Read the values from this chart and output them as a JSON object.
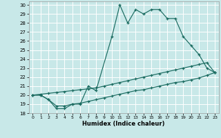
{
  "xlabel": "Humidex (Indice chaleur)",
  "background_color": "#c8e8e8",
  "grid_color": "#ffffff",
  "line_color": "#1a6b60",
  "xlim": [
    -0.5,
    23.5
  ],
  "ylim": [
    18,
    30.4
  ],
  "xtick_vals": [
    0,
    1,
    2,
    3,
    4,
    5,
    6,
    7,
    8,
    9,
    10,
    11,
    12,
    13,
    14,
    15,
    16,
    17,
    18,
    19,
    20,
    21,
    22,
    23
  ],
  "ytick_vals": [
    18,
    19,
    20,
    21,
    22,
    23,
    24,
    25,
    26,
    27,
    28,
    29,
    30
  ],
  "curve_main_x": [
    0,
    1,
    2,
    3,
    4,
    5,
    6,
    7,
    8,
    10,
    11,
    12,
    13,
    14,
    15,
    16,
    17,
    18,
    19,
    20,
    21,
    22,
    23
  ],
  "curve_main_y": [
    20,
    20,
    19.5,
    18.5,
    18.5,
    19.0,
    19.0,
    21.0,
    20.5,
    26.5,
    30.0,
    28.0,
    29.5,
    29.0,
    29.5,
    29.5,
    28.5,
    28.5,
    26.5,
    25.5,
    24.5,
    23.0,
    22.5
  ],
  "curve_upper_x": [
    0,
    1,
    2,
    3,
    4,
    5,
    6,
    7,
    8,
    9,
    10,
    11,
    12,
    13,
    14,
    15,
    16,
    17,
    18,
    19,
    20,
    21,
    22,
    23
  ],
  "curve_upper_y": [
    20.0,
    20.1,
    20.2,
    20.3,
    20.4,
    20.5,
    20.6,
    20.7,
    20.8,
    21.0,
    21.2,
    21.4,
    21.6,
    21.8,
    22.0,
    22.2,
    22.4,
    22.6,
    22.8,
    23.0,
    23.2,
    23.4,
    23.6,
    22.5
  ],
  "curve_lower_x": [
    0,
    1,
    2,
    3,
    4,
    5,
    6,
    7,
    8,
    9,
    10,
    11,
    12,
    13,
    14,
    15,
    16,
    17,
    18,
    19,
    20,
    21,
    22,
    23
  ],
  "curve_lower_y": [
    20.0,
    20.0,
    19.5,
    18.8,
    18.8,
    19.0,
    19.1,
    19.3,
    19.5,
    19.7,
    19.9,
    20.1,
    20.3,
    20.5,
    20.6,
    20.8,
    21.0,
    21.2,
    21.4,
    21.5,
    21.7,
    21.9,
    22.2,
    22.5
  ]
}
